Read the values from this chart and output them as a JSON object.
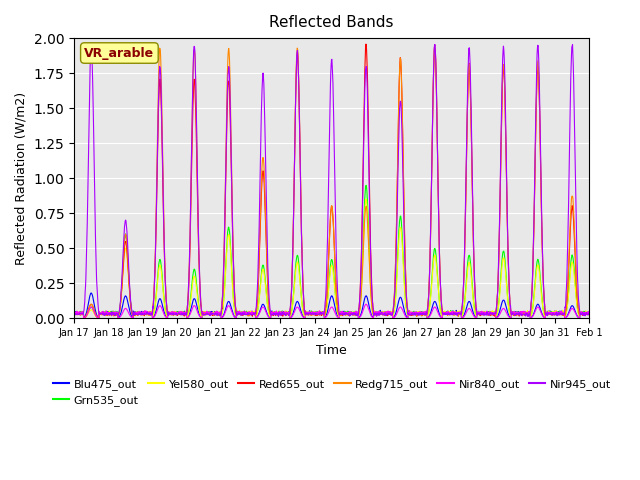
{
  "title": "Reflected Bands",
  "xlabel": "Time",
  "ylabel": "Reflected Radiation (W/m2)",
  "annotation": "VR_arable",
  "ylim": [
    0,
    2.0
  ],
  "series": {
    "Blu475_out": {
      "color": "#0000FF"
    },
    "Grn535_out": {
      "color": "#00FF00"
    },
    "Yel580_out": {
      "color": "#FFFF00"
    },
    "Red655_out": {
      "color": "#FF0000"
    },
    "Redg715_out": {
      "color": "#FF8800"
    },
    "Nir840_out": {
      "color": "#FF00FF"
    },
    "Nir945_out": {
      "color": "#AA00FF"
    }
  },
  "x_tick_labels": [
    "Jan 17",
    "Jan 18",
    "Jan 19",
    "Jan 20",
    "Jan 21",
    "Jan 22",
    "Jan 23",
    "Jan 24",
    "Jan 25",
    "Jan 26",
    "Jan 27",
    "Jan 28",
    "Jan 29",
    "Jan 30",
    "Jan 31",
    "Feb 1"
  ],
  "num_days": 15,
  "points_per_day": 96,
  "background_color": "#e8e8e8"
}
